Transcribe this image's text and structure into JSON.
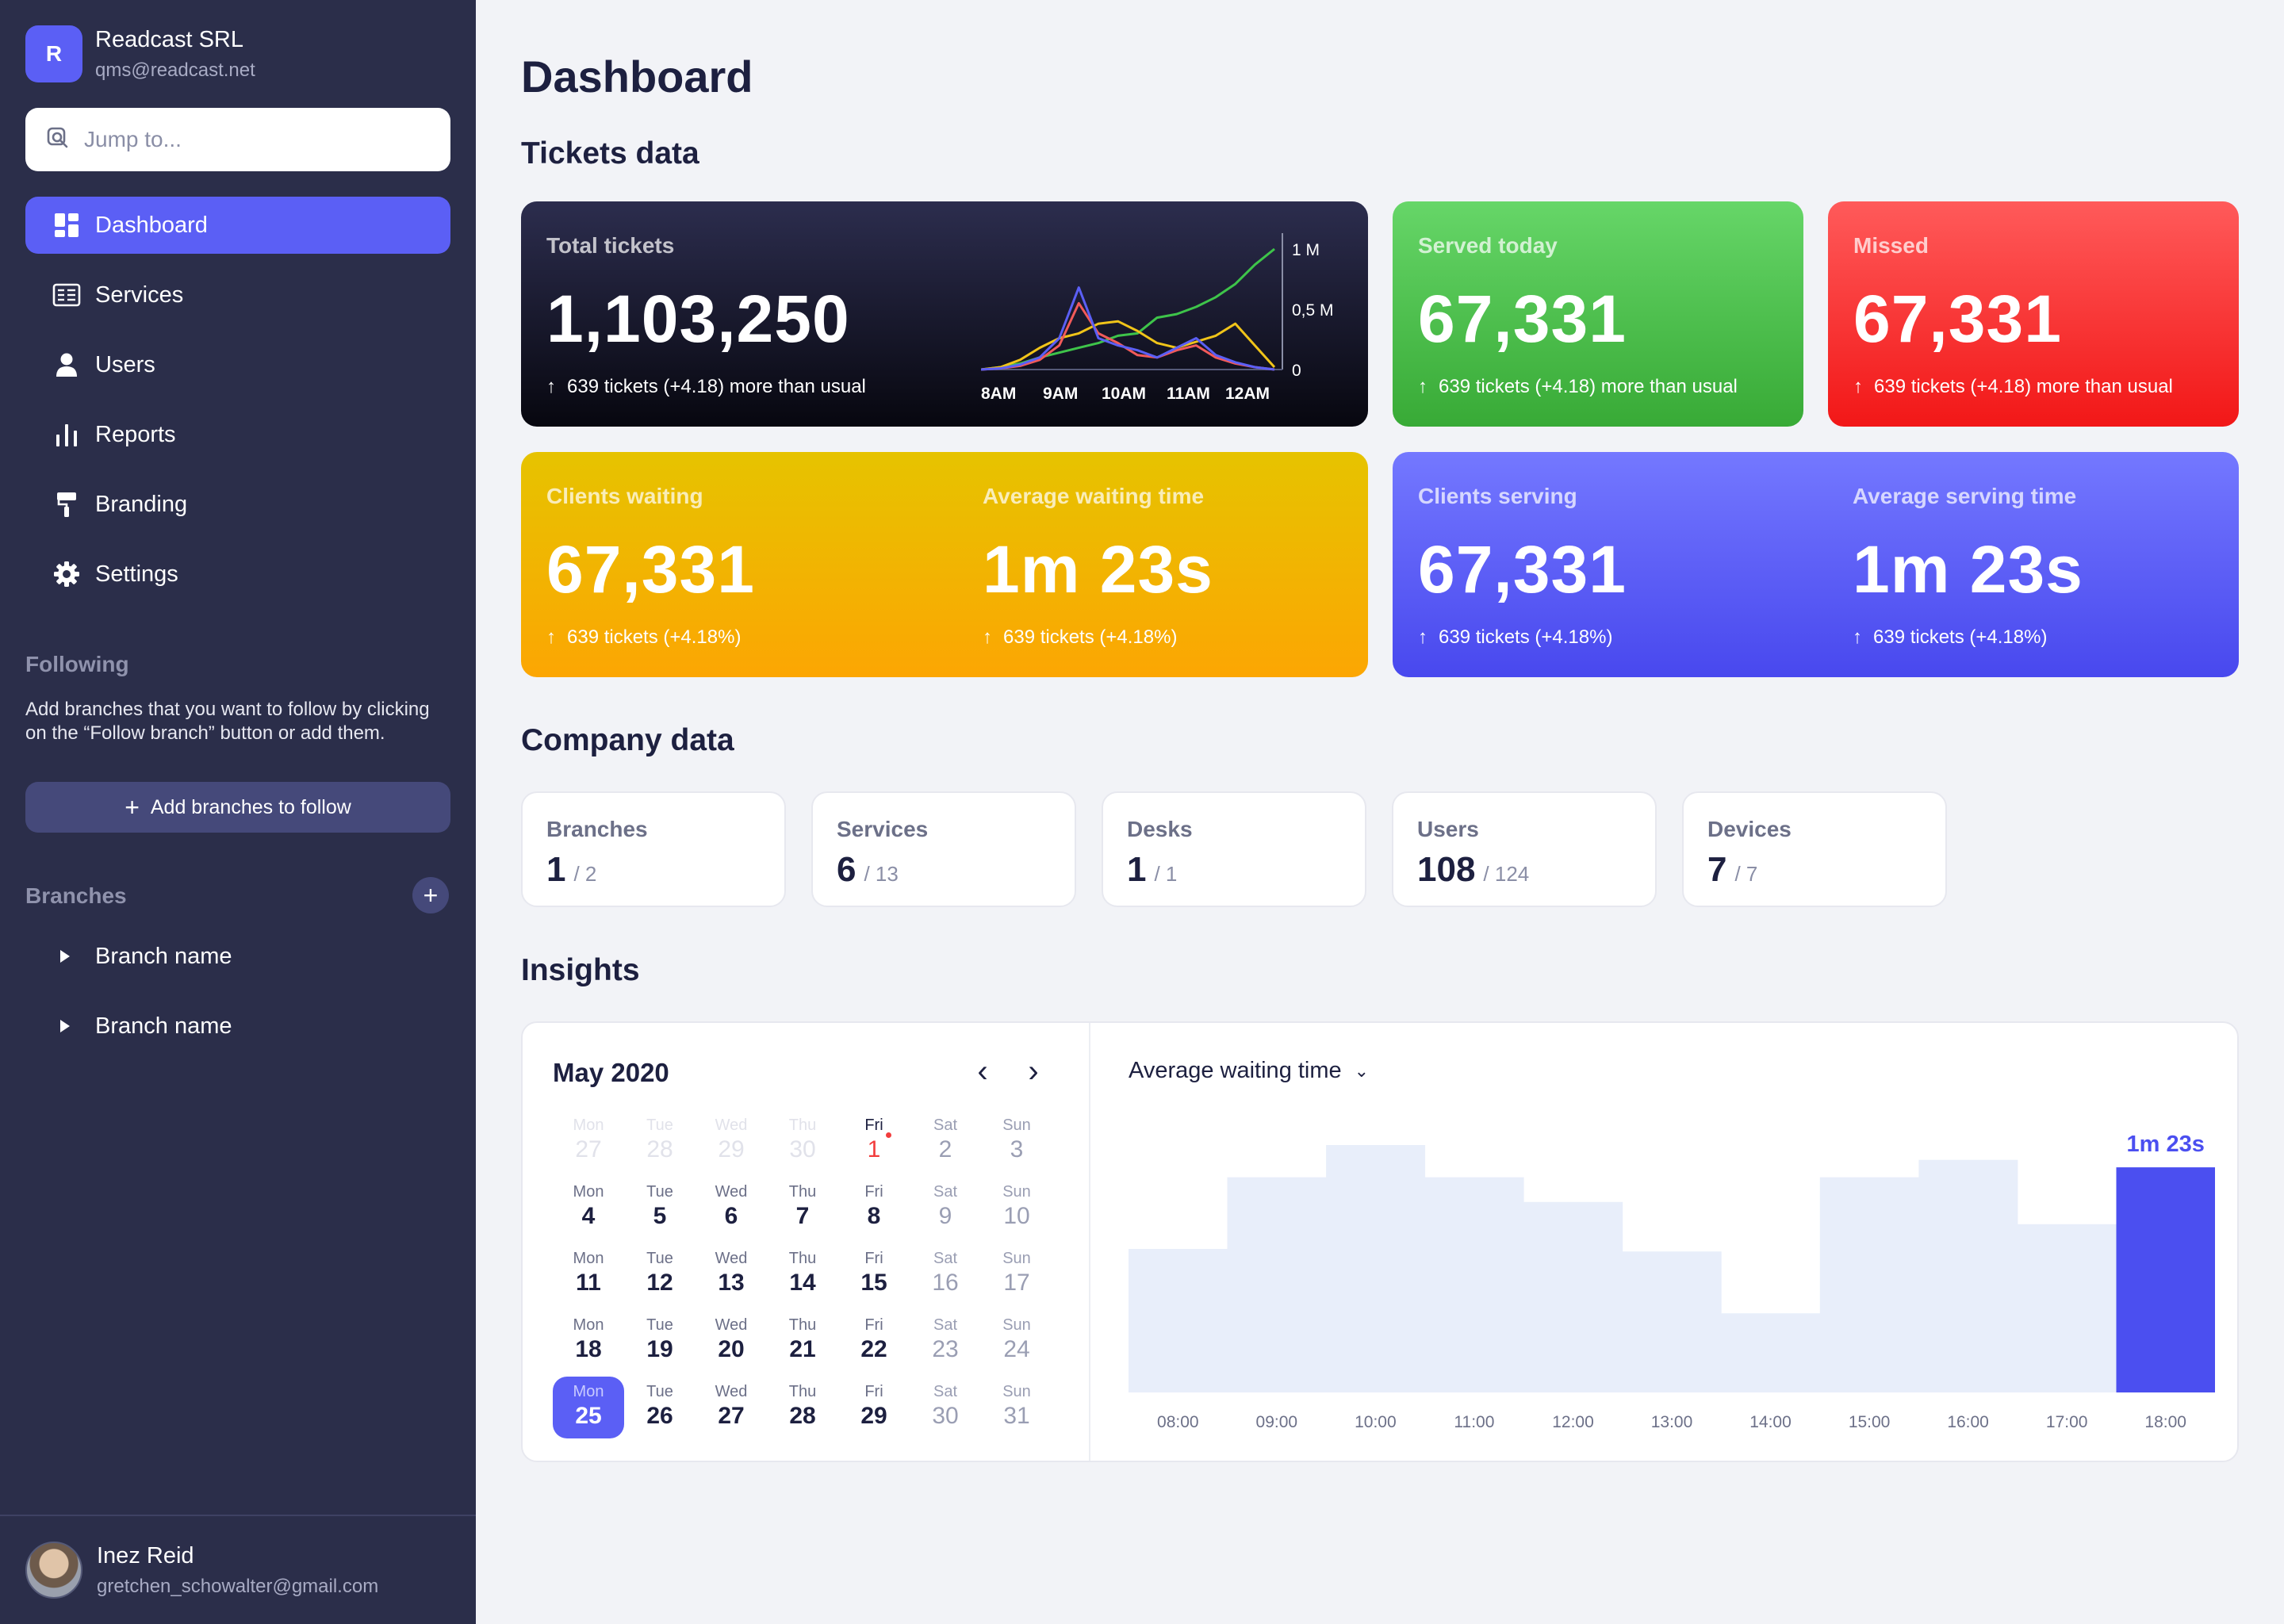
{
  "org": {
    "logo_letter": "R",
    "name": "Readcast SRL",
    "email": "qms@readcast.net"
  },
  "search": {
    "placeholder": "Jump to..."
  },
  "nav": [
    {
      "label": "Dashboard",
      "icon": "dashboard-icon",
      "active": true
    },
    {
      "label": "Services",
      "icon": "services-icon"
    },
    {
      "label": "Users",
      "icon": "user-icon"
    },
    {
      "label": "Reports",
      "icon": "bar-chart-icon"
    },
    {
      "label": "Branding",
      "icon": "paint-roller-icon"
    },
    {
      "label": "Settings",
      "icon": "gear-icon"
    }
  ],
  "following": {
    "title": "Following",
    "description": "Add branches that you want to follow by clicking on the “Follow branch” button or add them.",
    "add_label": "Add branches to follow"
  },
  "branches": {
    "title": "Branches",
    "items": [
      "Branch name",
      "Branch name"
    ]
  },
  "user": {
    "name": "Inez Reid",
    "email": "gretchen_schowalter@gmail.com"
  },
  "page": {
    "title": "Dashboard"
  },
  "sections": {
    "tickets": "Tickets data",
    "company": "Company data",
    "insights": "Insights"
  },
  "tickets": {
    "total": {
      "label": "Total tickets",
      "value": "1,103,250",
      "note": "639 tickets (+4.18) more than usual",
      "chart": {
        "x_labels": [
          "8AM",
          "9AM",
          "10AM",
          "11AM",
          "12AM"
        ],
        "y_labels": [
          "1 M",
          "0,5 M",
          "0"
        ],
        "series": [
          {
            "color": "#3ec44a",
            "values": [
              0.0,
              0.02,
              0.05,
              0.1,
              0.14,
              0.18,
              0.22,
              0.28,
              0.3,
              0.43,
              0.46,
              0.52,
              0.6,
              0.71,
              0.87,
              1.0
            ]
          },
          {
            "color": "#f0c419",
            "values": [
              0.0,
              0.02,
              0.08,
              0.18,
              0.26,
              0.3,
              0.38,
              0.4,
              0.32,
              0.22,
              0.18,
              0.23,
              0.28,
              0.38,
              0.2,
              0.02
            ]
          },
          {
            "color": "#f25a5a",
            "values": [
              0.0,
              0.01,
              0.03,
              0.08,
              0.2,
              0.55,
              0.3,
              0.22,
              0.12,
              0.1,
              0.16,
              0.2,
              0.1,
              0.05,
              0.02,
              0.0
            ]
          },
          {
            "color": "#5b5ff5",
            "values": [
              0.0,
              0.01,
              0.04,
              0.1,
              0.26,
              0.68,
              0.26,
              0.2,
              0.16,
              0.1,
              0.18,
              0.26,
              0.12,
              0.06,
              0.02,
              0.0
            ]
          }
        ]
      }
    },
    "served": {
      "label": "Served today",
      "value": "67,331",
      "note": "639 tickets (+4.18) more than usual"
    },
    "missed": {
      "label": "Missed",
      "value": "67,331",
      "note": "639 tickets (+4.18) more than usual"
    },
    "clients_waiting": {
      "label": "Clients waiting",
      "value": "67,331",
      "note": "639 tickets (+4.18%)"
    },
    "avg_waiting": {
      "label": "Average waiting time",
      "value": "1m 23s",
      "note": "639 tickets (+4.18%)"
    },
    "clients_serving": {
      "label": "Clients serving",
      "value": "67,331",
      "note": "639 tickets (+4.18%)"
    },
    "avg_serving": {
      "label": "Average serving time",
      "value": "1m 23s",
      "note": "639 tickets (+4.18%)"
    }
  },
  "company": [
    {
      "label": "Branches",
      "value": "1",
      "total": "/ 2"
    },
    {
      "label": "Services",
      "value": "6",
      "total": "/ 13"
    },
    {
      "label": "Desks",
      "value": "1",
      "total": "/ 1"
    },
    {
      "label": "Users",
      "value": "108",
      "total": "/ 124"
    },
    {
      "label": "Devices",
      "value": "7",
      "total": "/ 7"
    }
  ],
  "calendar": {
    "title": "May 2020",
    "days": [
      {
        "dow": "Mon",
        "num": "27",
        "state": "muted"
      },
      {
        "dow": "Tue",
        "num": "28",
        "state": "muted"
      },
      {
        "dow": "Wed",
        "num": "29",
        "state": "muted"
      },
      {
        "dow": "Thu",
        "num": "30",
        "state": "muted"
      },
      {
        "dow": "Fri",
        "num": "1",
        "state": "today"
      },
      {
        "dow": "Sat",
        "num": "2",
        "state": "weekend"
      },
      {
        "dow": "Sun",
        "num": "3",
        "state": "weekend"
      },
      {
        "dow": "Mon",
        "num": "4"
      },
      {
        "dow": "Tue",
        "num": "5"
      },
      {
        "dow": "Wed",
        "num": "6"
      },
      {
        "dow": "Thu",
        "num": "7"
      },
      {
        "dow": "Fri",
        "num": "8"
      },
      {
        "dow": "Sat",
        "num": "9",
        "state": "weekend"
      },
      {
        "dow": "Sun",
        "num": "10",
        "state": "weekend"
      },
      {
        "dow": "Mon",
        "num": "11"
      },
      {
        "dow": "Tue",
        "num": "12"
      },
      {
        "dow": "Wed",
        "num": "13"
      },
      {
        "dow": "Thu",
        "num": "14"
      },
      {
        "dow": "Fri",
        "num": "15"
      },
      {
        "dow": "Sat",
        "num": "16",
        "state": "weekend"
      },
      {
        "dow": "Sun",
        "num": "17",
        "state": "weekend"
      },
      {
        "dow": "Mon",
        "num": "18"
      },
      {
        "dow": "Tue",
        "num": "19"
      },
      {
        "dow": "Wed",
        "num": "20"
      },
      {
        "dow": "Thu",
        "num": "21"
      },
      {
        "dow": "Fri",
        "num": "22"
      },
      {
        "dow": "Sat",
        "num": "23",
        "state": "weekend"
      },
      {
        "dow": "Sun",
        "num": "24",
        "state": "weekend"
      },
      {
        "dow": "Mon",
        "num": "25",
        "state": "selected"
      },
      {
        "dow": "Tue",
        "num": "26"
      },
      {
        "dow": "Wed",
        "num": "27"
      },
      {
        "dow": "Thu",
        "num": "28"
      },
      {
        "dow": "Fri",
        "num": "29"
      },
      {
        "dow": "Sat",
        "num": "30",
        "state": "weekend"
      },
      {
        "dow": "Sun",
        "num": "31",
        "state": "weekend"
      }
    ]
  },
  "insights_chart": {
    "metric_label": "Average waiting time",
    "highlight_label": "1m 23s",
    "highlight_color": "#4b4ff0",
    "bar_color": "#e8eefa",
    "chart_data": {
      "type": "bar",
      "categories": [
        "08:00",
        "09:00",
        "10:00",
        "11:00",
        "12:00",
        "13:00",
        "14:00",
        "15:00",
        "16:00",
        "17:00",
        "18:00"
      ],
      "values": [
        0.58,
        0.87,
        1.0,
        0.87,
        0.77,
        0.57,
        0.32,
        0.87,
        0.94,
        0.68,
        0.91
      ],
      "highlight_index": 10
    }
  }
}
